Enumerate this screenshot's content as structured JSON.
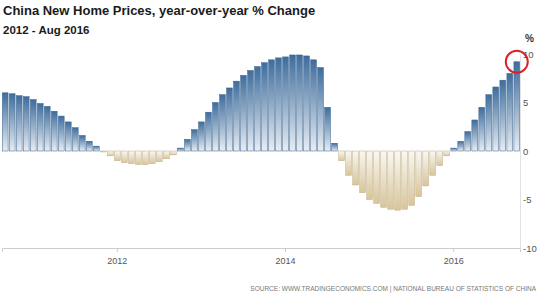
{
  "chart_data": {
    "type": "bar",
    "title": "China New Home Prices, year-over-year % Change",
    "subtitle": "2012 - Aug 2016",
    "y_label": "%",
    "source": "SOURCE: WWW.TRADINGECONOMICS.COM | NATIONAL BUREAU OF STATISTICS OF CHINA",
    "categories": [
      null,
      null,
      null,
      null,
      null,
      null,
      null,
      null,
      null,
      null,
      null,
      null,
      null,
      null,
      null,
      null,
      "2012",
      null,
      null,
      null,
      null,
      null,
      null,
      null,
      null,
      null,
      null,
      null,
      null,
      null,
      null,
      null,
      null,
      null,
      null,
      null,
      null,
      null,
      null,
      null,
      "2014",
      null,
      null,
      null,
      null,
      null,
      null,
      null,
      null,
      null,
      null,
      null,
      null,
      null,
      null,
      null,
      null,
      null,
      null,
      null,
      null,
      null,
      null,
      null,
      "2016",
      null,
      null,
      null,
      null,
      null,
      null,
      null,
      null,
      null
    ],
    "values": [
      6.0,
      5.9,
      5.7,
      5.6,
      5.3,
      4.9,
      4.6,
      4.1,
      3.6,
      3.0,
      2.4,
      1.6,
      1.0,
      0.5,
      -0.1,
      -0.5,
      -1.0,
      -1.2,
      -1.3,
      -1.4,
      -1.4,
      -1.3,
      -1.1,
      -0.8,
      -0.4,
      0.3,
      1.2,
      2.2,
      3.0,
      4.0,
      5.0,
      5.8,
      6.5,
      7.2,
      7.8,
      8.3,
      8.7,
      9.1,
      9.4,
      9.6,
      9.7,
      9.9,
      9.9,
      9.8,
      9.4,
      8.6,
      4.5,
      0.8,
      -1.0,
      -2.5,
      -3.5,
      -4.3,
      -5.0,
      -5.4,
      -5.8,
      -6.0,
      -6.1,
      -6.0,
      -5.6,
      -4.7,
      -3.6,
      -2.5,
      -1.5,
      -0.5,
      0.3,
      1.0,
      2.0,
      3.2,
      4.5,
      5.8,
      6.6,
      7.3,
      8.0,
      9.2
    ],
    "colors": [
      "#3d6d9e",
      "#3d6d9e",
      "#3d6d9e",
      "#3d6d9e",
      "#3d6d9e",
      "#3d6d9e",
      "#3d6d9e",
      "#3d6d9e",
      "#3d6d9e",
      "#3d6d9e",
      "#3d6d9e",
      "#3d6d9e",
      "#3d6d9e",
      "#3d6d9e",
      "#d9c59a",
      "#d9c59a",
      "#d9c59a",
      "#d9c59a",
      "#d9c59a",
      "#d9c59a",
      "#d9c59a",
      "#d9c59a",
      "#d9c59a",
      "#d9c59a",
      "#d9c59a",
      "#3d6d9e",
      "#3d6d9e",
      "#3d6d9e",
      "#3d6d9e",
      "#3d6d9e",
      "#3d6d9e",
      "#3d6d9e",
      "#3d6d9e",
      "#3d6d9e",
      "#3d6d9e",
      "#3d6d9e",
      "#3d6d9e",
      "#3d6d9e",
      "#3d6d9e",
      "#3d6d9e",
      "#3d6d9e",
      "#3d6d9e",
      "#3d6d9e",
      "#3d6d9e",
      "#3d6d9e",
      "#3d6d9e",
      "#3d6d9e",
      "#3d6d9e",
      "#d9c59a",
      "#d9c59a",
      "#d9c59a",
      "#d9c59a",
      "#d9c59a",
      "#d9c59a",
      "#d9c59a",
      "#d9c59a",
      "#d9c59a",
      "#d9c59a",
      "#d9c59a",
      "#d9c59a",
      "#d9c59a",
      "#d9c59a",
      "#d9c59a",
      "#d9c59a",
      "#3d6d9e",
      "#3d6d9e",
      "#3d6d9e",
      "#3d6d9e",
      "#3d6d9e",
      "#3d6d9e",
      "#3d6d9e",
      "#3d6d9e",
      "#3d6d9e",
      "#3d6d9e"
    ],
    "ylim": [
      -10,
      10
    ],
    "yticks": [
      -10,
      -5,
      0,
      5,
      10
    ],
    "grid": false
  }
}
